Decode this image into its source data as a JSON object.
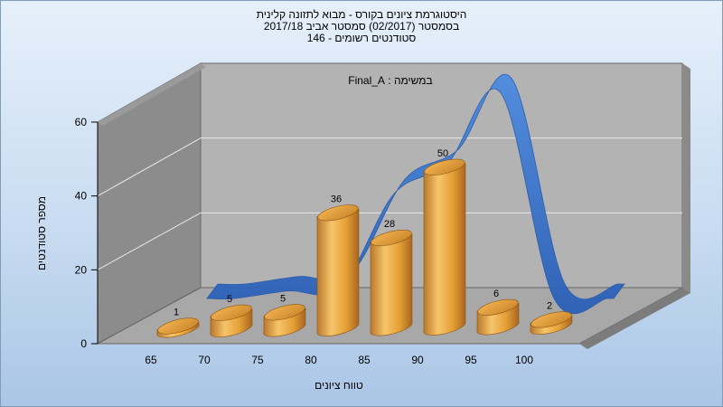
{
  "chart_data": {
    "type": "bar",
    "title": "היסטוגרמת ציונים בקורס - מבוא לתזונה קלינית",
    "subtitle": "בסמסטר  (02/2017)  סמסטר אביב 2017/18",
    "subtitle2": "סטודנטים רשומים - 146",
    "annotation": "במשימה : Final_A",
    "xlabel": "טווח ציונים",
    "ylabel": "מספר סטודנטים",
    "categories": [
      "65",
      "70",
      "75",
      "80",
      "85",
      "90",
      "95",
      "100"
    ],
    "values": [
      1,
      5,
      5,
      36,
      28,
      50,
      6,
      2
    ],
    "curve": [
      0,
      2,
      3,
      28,
      36,
      55,
      0,
      0
    ],
    "ylim": [
      0,
      60
    ],
    "yticks": [
      "0",
      "20",
      "40",
      "60"
    ],
    "colors": {
      "bar": "#e8a63a",
      "curve": "#3b76d0",
      "wall": "#b3b3b3"
    }
  }
}
